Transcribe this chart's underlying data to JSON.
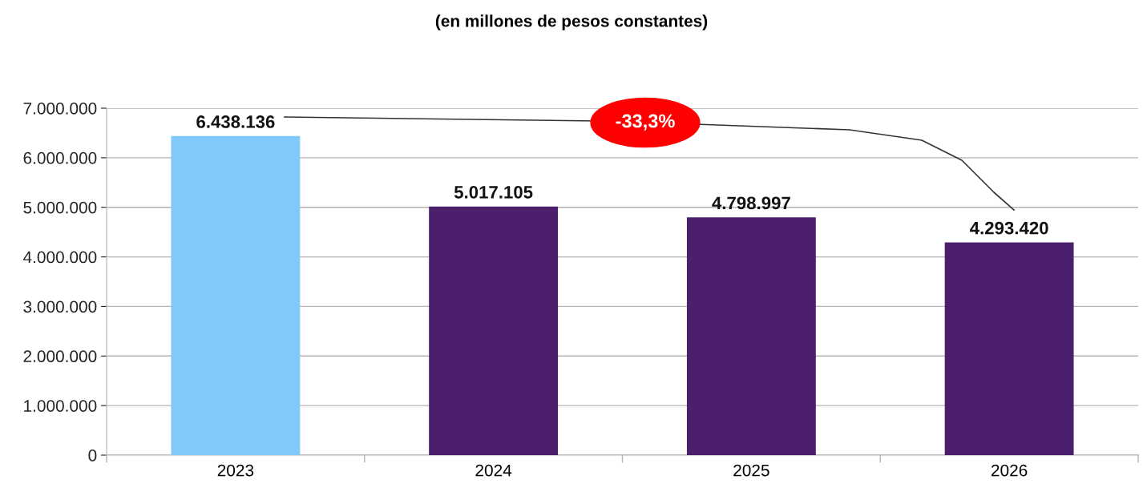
{
  "chart_data": {
    "type": "bar",
    "title": "(en millones de pesos constantes)",
    "categories": [
      "2023",
      "2024",
      "2025",
      "2026"
    ],
    "values": [
      6438136,
      5017105,
      4798997,
      4293420
    ],
    "colors": [
      "#81c9fb",
      "#4b1f6b",
      "#4b1f6b",
      "#4b1f6b"
    ],
    "value_labels": [
      "6.438.136",
      "5.017.105",
      "4.798.997",
      "4.293.420"
    ],
    "ylim": [
      0,
      7000000
    ],
    "yticks": [
      {
        "value": 0,
        "label": "0"
      },
      {
        "value": 1000000,
        "label": "1.000.000"
      },
      {
        "value": 2000000,
        "label": "2.000.000"
      },
      {
        "value": 3000000,
        "label": "3.000.000"
      },
      {
        "value": 4000000,
        "label": "4.000.000"
      },
      {
        "value": 5000000,
        "label": "5.000.000"
      },
      {
        "value": 6000000,
        "label": "6.000.000"
      },
      {
        "value": 7000000,
        "label": "7.000.000"
      }
    ],
    "grid": "y",
    "annotations": [
      "-33,3%"
    ]
  }
}
